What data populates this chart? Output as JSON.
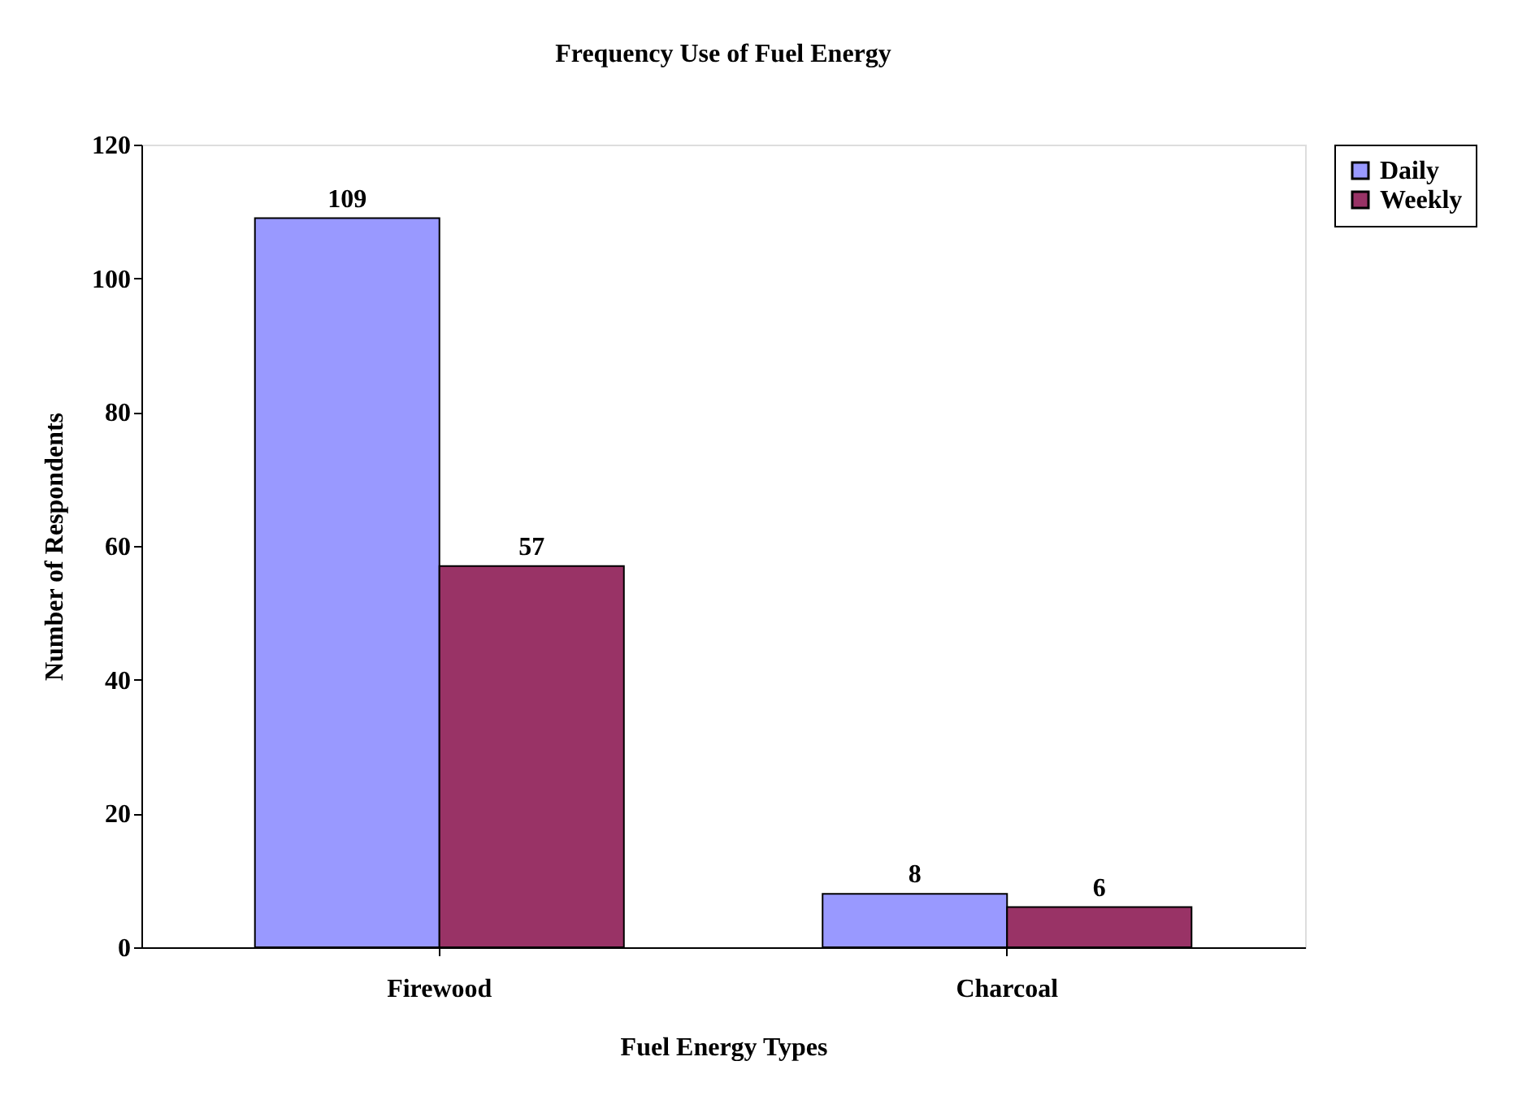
{
  "chart_data": {
    "type": "bar",
    "title": "Frequency Use of Fuel Energy",
    "xlabel": "Fuel Energy Types",
    "ylabel": "Number of Respondents",
    "categories": [
      "Firewood",
      "Charcoal"
    ],
    "series": [
      {
        "name": "Daily",
        "color": "#9999ff",
        "values": [
          109,
          8
        ]
      },
      {
        "name": "Weekly",
        "color": "#993366",
        "values": [
          57,
          6
        ]
      }
    ],
    "ylim": [
      0,
      120
    ],
    "yticks": [
      0,
      20,
      40,
      60,
      80,
      100,
      120
    ],
    "grid": false,
    "legend": "right",
    "data_labels": true
  }
}
